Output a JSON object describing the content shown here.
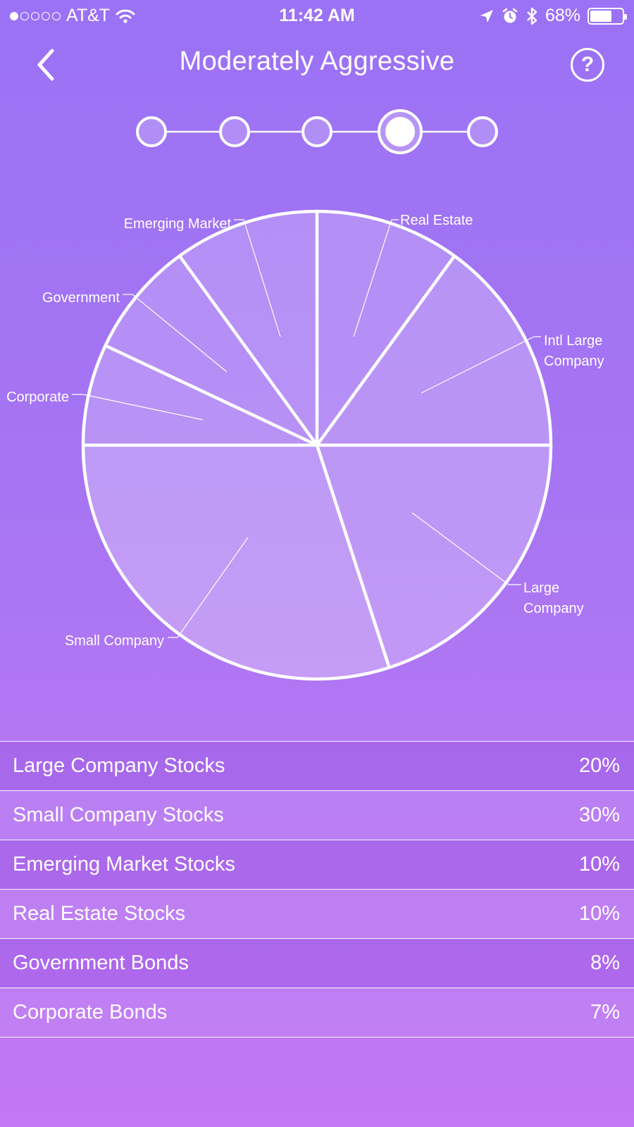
{
  "status_bar": {
    "carrier": "AT&T",
    "time": "11:42 AM",
    "battery": "68%",
    "battery_level": 0.68,
    "signal_bars_filled": 1,
    "signal_bars_total": 5,
    "icons": [
      "wifi-icon",
      "location-arrow-icon",
      "alarm-icon",
      "bluetooth-icon",
      "battery-icon"
    ]
  },
  "nav": {
    "title": "Moderately Aggressive",
    "back_icon": "chevron-left-icon",
    "help_label": "?"
  },
  "stepper": {
    "step_count": 5,
    "selected_index": 3
  },
  "colors": {
    "background_top": "#9b72f5",
    "background_bottom": "#c277f4",
    "foreground": "#ffffff"
  },
  "chart_data": {
    "type": "pie",
    "start": "12 o'clock",
    "direction": "clockwise",
    "slices": [
      {
        "label": "Real Estate",
        "value": 10
      },
      {
        "label": "Intl Large Company",
        "value": 15
      },
      {
        "label": "Large Company",
        "value": 20
      },
      {
        "label": "Small Company",
        "value": 30
      },
      {
        "label": "Corporate",
        "value": 7
      },
      {
        "label": "Government",
        "value": 8
      },
      {
        "label": "Emerging Market",
        "value": 10
      }
    ]
  },
  "allocations": [
    {
      "name": "Large Company Stocks",
      "percent": "20%"
    },
    {
      "name": "Small Company Stocks",
      "percent": "30%"
    },
    {
      "name": "Emerging Market Stocks",
      "percent": "10%"
    },
    {
      "name": "Real Estate Stocks",
      "percent": "10%"
    },
    {
      "name": "Government Bonds",
      "percent": "8%"
    },
    {
      "name": "Corporate Bonds",
      "percent": "7%"
    }
  ]
}
